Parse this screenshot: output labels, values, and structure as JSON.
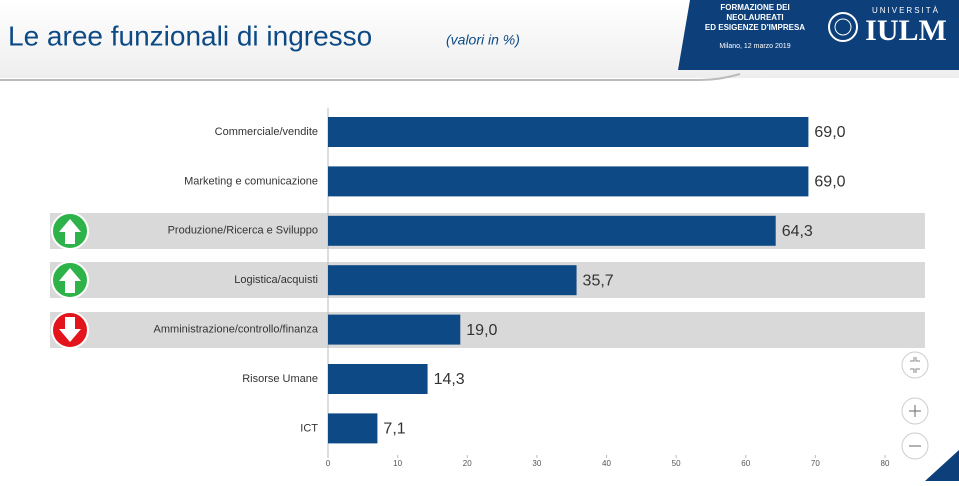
{
  "slide_header": {
    "banner": [
      "FORMAZIONE DEI",
      "NEOLAUREATI",
      "ED ESIGENZE D'IMPRESA"
    ],
    "date": "Milano, 12 marzo 2019",
    "logo_top": "UNIVERSITÀ",
    "logo": "IULM"
  },
  "chart_data": {
    "type": "hbar",
    "title": "Le aree funzionali di ingresso",
    "subtitle": "(valori in %)",
    "categories": [
      "Commerciale/vendite",
      "Marketing e comunicazione",
      "Produzione/Ricerca e Sviluppo",
      "Logistica/acquisti",
      "Amministrazione/controllo/finanza",
      "Risorse Umane",
      "ICT"
    ],
    "values": [
      69.0,
      69.0,
      64.3,
      35.7,
      19.0,
      14.3,
      7.1
    ],
    "value_labels": [
      "69,0",
      "69,0",
      "64,3",
      "35,7",
      "19,0",
      "14,3",
      "7,1"
    ],
    "color": "#0d4a85",
    "xlim": [
      0,
      80
    ],
    "xticks": [
      0,
      10,
      20,
      30,
      40,
      50,
      60,
      70,
      80
    ]
  }
}
